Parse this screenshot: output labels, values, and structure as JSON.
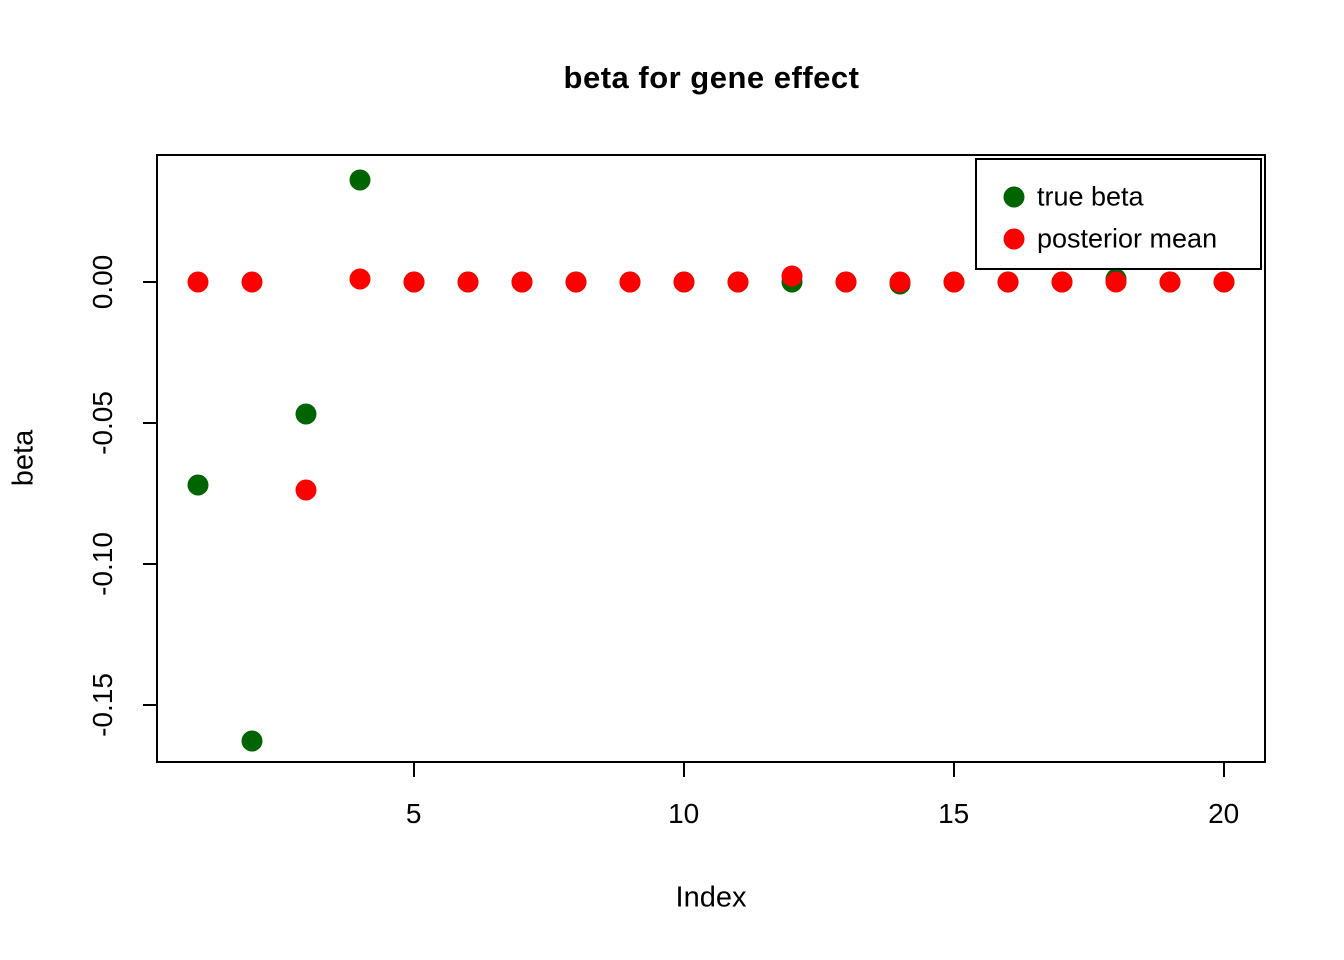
{
  "chart_data": {
    "type": "scatter",
    "title": "beta for gene effect",
    "xlabel": "Index",
    "ylabel": "beta",
    "x": [
      1,
      2,
      3,
      4,
      5,
      6,
      7,
      8,
      9,
      10,
      11,
      12,
      13,
      14,
      15,
      16,
      17,
      18,
      19,
      20
    ],
    "series": [
      {
        "name": "true beta",
        "color": "#006400",
        "values": [
          -0.072,
          -0.163,
          -0.047,
          0.036,
          0.0,
          0.0,
          0.0,
          0.0,
          0.0,
          0.0,
          0.0,
          0.0,
          0.0,
          -0.001,
          0.0,
          0.0,
          0.0,
          0.001,
          0.0,
          0.0
        ]
      },
      {
        "name": "posterior mean",
        "color": "#FF0000",
        "values": [
          0.0,
          0.0,
          -0.074,
          0.001,
          0.0,
          0.0,
          0.0,
          0.0,
          0.0,
          0.0,
          0.0,
          0.002,
          0.0,
          0.0,
          0.0,
          0.0,
          0.0,
          0.0,
          0.0,
          0.0
        ]
      }
    ],
    "x_ticks": {
      "values": [
        5,
        10,
        15,
        20
      ],
      "labels": [
        "5",
        "10",
        "15",
        "20"
      ]
    },
    "y_ticks": {
      "values": [
        0.0,
        -0.05,
        -0.1,
        -0.15
      ],
      "labels": [
        "0.00",
        "-0.05",
        "-0.10",
        "-0.15"
      ]
    },
    "xlim": [
      0.25,
      20.78
    ],
    "ylim": [
      -0.1707,
      0.0449
    ],
    "grid": "off",
    "legend": {
      "position": "topright",
      "entries": [
        "true beta",
        "posterior mean"
      ]
    }
  }
}
